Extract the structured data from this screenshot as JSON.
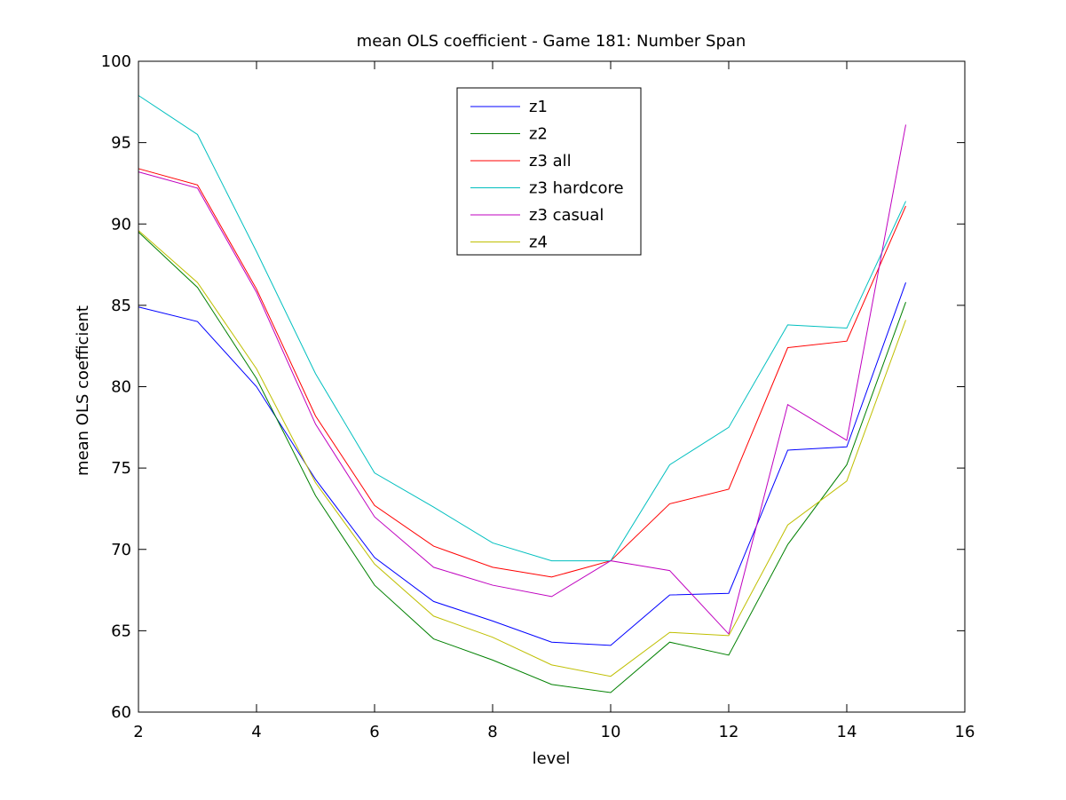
{
  "chart_data": {
    "type": "line",
    "title": "mean OLS coefficient - Game 181: Number Span",
    "xlabel": "level",
    "ylabel": "mean OLS coefficient",
    "xlim": [
      2,
      16
    ],
    "ylim": [
      60,
      100
    ],
    "xticks": [
      2,
      4,
      6,
      8,
      10,
      12,
      14,
      16
    ],
    "yticks": [
      60,
      65,
      70,
      75,
      80,
      85,
      90,
      95,
      100
    ],
    "grid": false,
    "legend_position": "top-center",
    "x": [
      2,
      3,
      4,
      5,
      6,
      7,
      8,
      9,
      10,
      11,
      12,
      13,
      14,
      15
    ],
    "series": [
      {
        "name": "z1",
        "color": "#0000ff",
        "values": [
          84.9,
          84.0,
          80.0,
          74.3,
          69.5,
          66.8,
          65.6,
          64.3,
          64.1,
          67.2,
          67.3,
          76.1,
          76.3,
          86.4
        ]
      },
      {
        "name": "z2",
        "color": "#008000",
        "values": [
          89.5,
          86.1,
          80.5,
          73.3,
          67.8,
          64.5,
          63.2,
          61.7,
          61.2,
          64.3,
          63.5,
          70.3,
          75.2,
          85.2
        ]
      },
      {
        "name": "z3 all",
        "color": "#ff0000",
        "values": [
          93.4,
          92.4,
          86.0,
          78.2,
          72.7,
          70.2,
          68.9,
          68.3,
          69.3,
          72.8,
          73.7,
          82.4,
          82.8,
          91.1
        ]
      },
      {
        "name": "z3 hardcore",
        "color": "#00bfbf",
        "values": [
          97.9,
          95.5,
          88.3,
          80.8,
          74.7,
          72.6,
          70.4,
          69.3,
          69.3,
          75.2,
          77.5,
          83.8,
          83.6,
          91.4
        ]
      },
      {
        "name": "z3 casual",
        "color": "#bf00bf",
        "values": [
          93.2,
          92.2,
          85.8,
          77.7,
          72.0,
          68.9,
          67.8,
          67.1,
          69.3,
          68.7,
          64.8,
          78.9,
          76.7,
          96.1
        ]
      },
      {
        "name": "z4",
        "color": "#bfbf00",
        "values": [
          89.6,
          86.4,
          81.1,
          74.1,
          69.1,
          65.9,
          64.6,
          62.9,
          62.2,
          64.9,
          64.7,
          71.5,
          74.2,
          84.1
        ]
      }
    ]
  }
}
